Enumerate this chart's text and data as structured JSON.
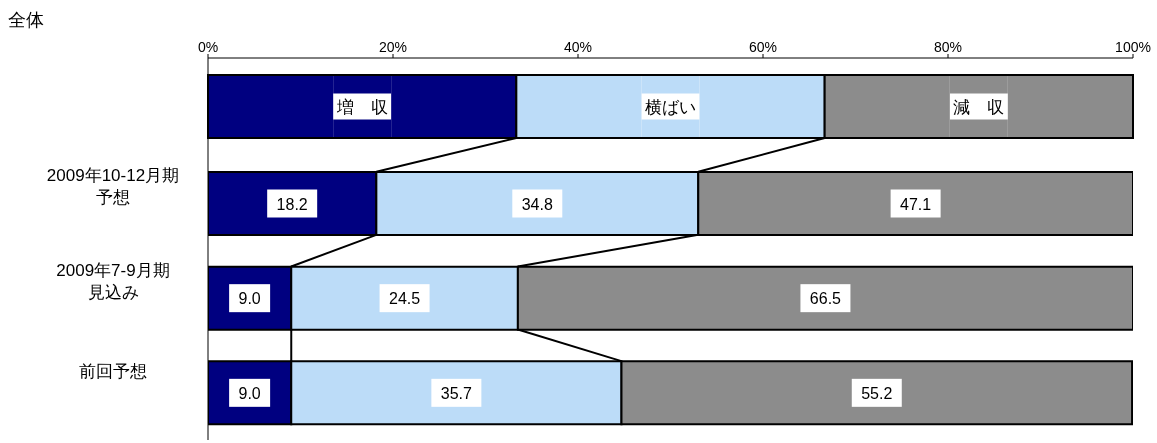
{
  "chart_data": {
    "type": "bar",
    "orientation": "horizontal",
    "stacked": true,
    "title": "全体",
    "categories": [
      "2009年10-12月期予想",
      "2009年7-9月期見込み",
      "前回予想"
    ],
    "series": [
      {
        "name": "増　収",
        "color": "#000080",
        "values": [
          18.2,
          9.0,
          9.0
        ],
        "value_labels": [
          "18.2",
          "9.0",
          "9.0"
        ]
      },
      {
        "name": "横ばい",
        "color": "#bcdcf8",
        "values": [
          34.8,
          24.5,
          35.7
        ],
        "value_labels": [
          "34.8",
          "24.5",
          "35.7"
        ]
      },
      {
        "name": "減　収",
        "color": "#8c8c8c",
        "values": [
          47.1,
          66.5,
          55.2
        ],
        "value_labels": [
          "47.1",
          "66.5",
          "55.2"
        ]
      }
    ],
    "xlim": [
      0,
      100
    ],
    "xticks": [
      {
        "value": 0,
        "label": "0%"
      },
      {
        "value": 20,
        "label": "20%"
      },
      {
        "value": 40,
        "label": "40%"
      },
      {
        "value": 60,
        "label": "60%"
      },
      {
        "value": 80,
        "label": "80%"
      },
      {
        "value": 100,
        "label": "100%"
      }
    ],
    "legend": "top",
    "grid": false
  }
}
